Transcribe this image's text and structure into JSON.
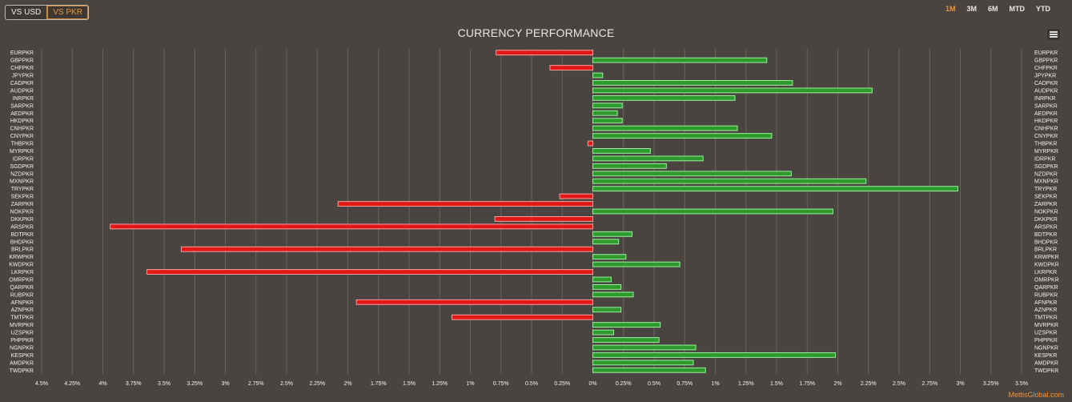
{
  "toolbar": {
    "toggles": [
      {
        "label": "VS USD",
        "active": false
      },
      {
        "label": "VS PKR",
        "active": true
      }
    ],
    "ranges": [
      {
        "label": "1M",
        "active": true
      },
      {
        "label": "3M",
        "active": false
      },
      {
        "label": "6M",
        "active": false
      },
      {
        "label": "MTD",
        "active": false
      },
      {
        "label": "YTD",
        "active": false
      }
    ],
    "menu_icon": "hamburger-menu-icon"
  },
  "credit": "MettisGlobal.com",
  "colors": {
    "background": "#4a4440",
    "positive_fill": "#2e9a2e",
    "positive_stroke": "#9af09a",
    "negative_fill": "#e01818",
    "negative_stroke": "#ff9c9c",
    "gridline": "#6a645f",
    "text": "#f2f2f2",
    "accent": "#f0953c"
  },
  "chart_data": {
    "type": "bar",
    "orientation": "horizontal",
    "title": "CURRENCY PERFORMANCE",
    "xlim": [
      -4.5,
      3.5
    ],
    "x_ticks": [
      "4.5%",
      "4.25%",
      "4%",
      "3.75%",
      "3.5%",
      "3.25%",
      "3%",
      "2.75%",
      "2.5%",
      "2.25%",
      "2%",
      "1.75%",
      "1.5%",
      "1.25%",
      "1%",
      "0.75%",
      "0.5%",
      "0.25%",
      "0%",
      "0.25%",
      "0.5%",
      "0.75%",
      "1%",
      "1.25%",
      "1.5%",
      "1.75%",
      "2%",
      "2.25%",
      "2.5%",
      "2.75%",
      "3%",
      "3.25%",
      "3.5%"
    ],
    "grid": true,
    "legend": "none",
    "categories": [
      "EURPKR",
      "GBPPKR",
      "CHFPKR",
      "JPYPKR",
      "CADPKR",
      "AUDPKR",
      "INRPKR",
      "SARPKR",
      "AEDPKR",
      "HKDPKR",
      "CNHPKR",
      "CNYPKR",
      "THBPKR",
      "MYRPKR",
      "IDRPKR",
      "SGDPKR",
      "NZDPKR",
      "MXNPKR",
      "TRYPKR",
      "SEKPKR",
      "ZARPKR",
      "NOKPKR",
      "DKKPKR",
      "ARSPKR",
      "BDTPKR",
      "BHDPKR",
      "BRLPKR",
      "KRWPKR",
      "KWDPKR",
      "LKRPKR",
      "OMRPKR",
      "QARPKR",
      "RUBPKR",
      "AFNPKR",
      "AZNPKR",
      "TMTPKR",
      "MVRPKR",
      "UZSPKR",
      "PHPPKR",
      "NGNPKR",
      "KESPKR",
      "AMDPKR",
      "TWDPKR"
    ],
    "values": [
      -0.79,
      1.42,
      -0.35,
      0.08,
      1.63,
      2.28,
      1.16,
      0.24,
      0.2,
      0.24,
      1.18,
      1.46,
      -0.04,
      0.47,
      0.9,
      0.6,
      1.62,
      2.23,
      2.98,
      -0.27,
      -2.08,
      1.96,
      -0.8,
      -3.94,
      0.32,
      0.21,
      -3.36,
      0.27,
      0.71,
      -3.64,
      0.15,
      0.23,
      0.33,
      -1.93,
      0.23,
      -1.15,
      0.55,
      0.17,
      0.54,
      0.84,
      1.98,
      0.82,
      0.92
    ]
  }
}
